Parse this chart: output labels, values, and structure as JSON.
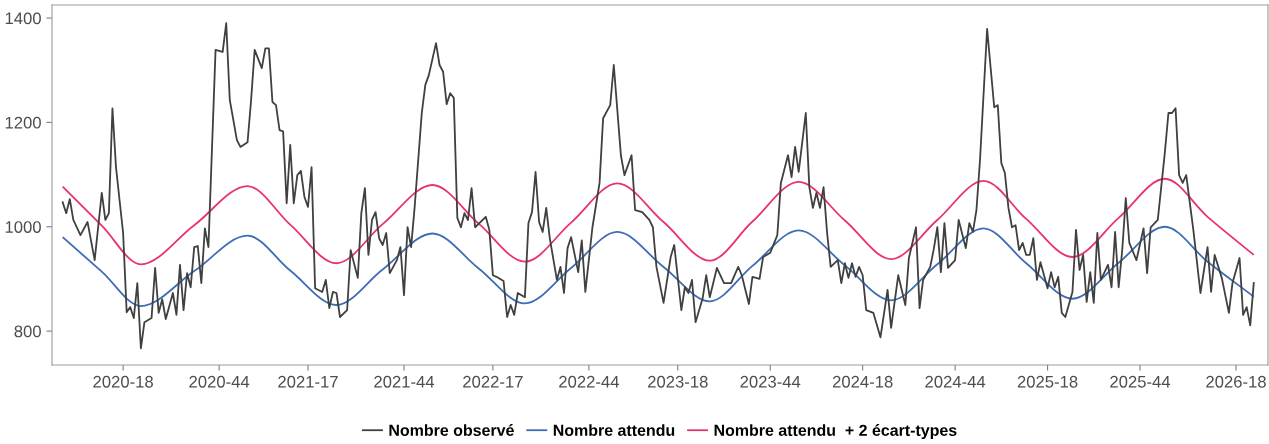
{
  "chart_data": {
    "type": "line",
    "ylim": [
      735,
      1425
    ],
    "yticks": [
      800,
      1000,
      1200,
      1400
    ],
    "grid": false,
    "legend": "bottom",
    "marker": "none",
    "line_style": "solid",
    "categories": [
      null,
      null,
      null,
      null,
      null,
      null,
      null,
      null,
      null,
      null,
      null,
      null,
      null,
      null,
      null,
      null,
      null,
      "2020-18",
      null,
      null,
      null,
      null,
      null,
      null,
      null,
      null,
      null,
      null,
      null,
      null,
      null,
      null,
      null,
      null,
      null,
      null,
      null,
      null,
      null,
      null,
      null,
      null,
      null,
      null,
      "2020-44",
      null,
      null,
      null,
      null,
      null,
      null,
      null,
      null,
      null,
      null,
      null,
      null,
      null,
      null,
      null,
      null,
      null,
      null,
      null,
      null,
      null,
      null,
      null,
      null,
      "2021-17",
      null,
      null,
      null,
      null,
      null,
      null,
      null,
      null,
      null,
      null,
      null,
      null,
      null,
      null,
      null,
      null,
      null,
      null,
      null,
      null,
      null,
      null,
      null,
      null,
      null,
      null,
      "2021-44",
      null,
      null,
      null,
      null,
      null,
      null,
      null,
      null,
      null,
      null,
      null,
      null,
      null,
      null,
      null,
      null,
      null,
      null,
      null,
      null,
      null,
      null,
      null,
      null,
      "2022-17",
      null,
      null,
      null,
      null,
      null,
      null,
      null,
      null,
      null,
      null,
      null,
      null,
      null,
      null,
      null,
      null,
      null,
      null,
      null,
      null,
      null,
      null,
      null,
      null,
      null,
      null,
      "2022-44",
      null,
      null,
      null,
      null,
      null,
      null,
      null,
      null,
      null,
      null,
      null,
      null,
      null,
      null,
      null,
      null,
      null,
      null,
      null,
      null,
      null,
      null,
      null,
      null,
      "2023-18",
      null,
      null,
      null,
      null,
      null,
      null,
      null,
      null,
      null,
      null,
      null,
      null,
      null,
      null,
      null,
      null,
      null,
      null,
      null,
      null,
      null,
      null,
      null,
      null,
      null,
      "2023-44",
      null,
      null,
      null,
      null,
      null,
      null,
      null,
      null,
      null,
      null,
      null,
      null,
      null,
      null,
      null,
      null,
      null,
      null,
      null,
      null,
      null,
      null,
      null,
      null,
      null,
      "2024-18",
      null,
      null,
      null,
      null,
      null,
      null,
      null,
      null,
      null,
      null,
      null,
      null,
      null,
      null,
      null,
      null,
      null,
      null,
      null,
      null,
      null,
      null,
      null,
      null,
      null,
      "2024-44",
      null,
      null,
      null,
      null,
      null,
      null,
      null,
      null,
      null,
      null,
      null,
      null,
      null,
      null,
      null,
      null,
      null,
      null,
      null,
      null,
      null,
      null,
      null,
      null,
      null,
      "2025-18",
      null,
      null,
      null,
      null,
      null,
      null,
      null,
      null,
      null,
      null,
      null,
      null,
      null,
      null,
      null,
      null,
      null,
      null,
      null,
      null,
      null,
      null,
      null,
      null,
      null,
      "2025-44",
      null,
      null,
      null,
      null,
      null,
      null,
      null,
      null,
      null,
      null,
      null,
      null,
      null,
      null,
      null,
      null,
      null,
      null,
      null,
      null,
      null,
      null,
      null,
      null,
      null,
      null,
      "2026-18",
      null,
      null,
      null,
      null,
      null
    ],
    "series": [
      {
        "name": "Nombre observé",
        "color": "#404040",
        "values": [
          1047,
          1026,
          1053,
          1013,
          null,
          984,
          null,
          1009,
          null,
          936,
          null,
          1065,
          1013,
          1026,
          1227,
          1114,
          null,
          988,
          836,
          846,
          825,
          892,
          767,
          817,
          null,
          825,
          921,
          835,
          861,
          823,
          null,
          873,
          831,
          927,
          840,
          911,
          884,
          961,
          963,
          892,
          997,
          961,
          null,
          1339,
          null,
          1335,
          1390,
          1243,
          null,
          1166,
          1153,
          null,
          1162,
          1243,
          1339,
          null,
          1304,
          1342,
          1342,
          1239,
          1233,
          1185,
          1183,
          1045,
          1157,
          1045,
          1099,
          1107,
          1057,
          1038,
          1114,
          882,
          null,
          875,
          898,
          844,
          875,
          873,
          827,
          null,
          840,
          955,
          null,
          902,
          1026,
          1074,
          946,
          1013,
          1028,
          978,
          965,
          988,
          911,
          null,
          936,
          961,
          869,
          999,
          961,
          1038,
          null,
          1218,
          1272,
          1291,
          null,
          1352,
          1310,
          1297,
          1235,
          1256,
          1247,
          1017,
          999,
          1026,
          1013,
          1074,
          999,
          null,
          null,
          1019,
          994,
          907,
          904,
          null,
          896,
          827,
          850,
          831,
          873,
          null,
          865,
          1007,
          1028,
          1105,
          1009,
          990,
          1036,
          978,
          null,
          898,
          923,
          873,
          959,
          980,
          null,
          913,
          974,
          875,
          null,
          999,
          null,
          1084,
          1208,
          null,
          1233,
          1310,
          null,
          1137,
          1099,
          null,
          1137,
          1032,
          null,
          1028,
          null,
          1013,
          999,
          923,
          null,
          854,
          null,
          942,
          965,
          null,
          840,
          884,
          873,
          898,
          817,
          null,
          863,
          907,
          865,
          null,
          921,
          null,
          892,
          null,
          892,
          null,
          923,
          907,
          null,
          852,
          904,
          null,
          900,
          942,
          null,
          950,
          null,
          984,
          1084,
          null,
          1137,
          1095,
          1153,
          1105,
          null,
          1218,
          1076,
          1036,
          1065,
          1036,
          1076,
          988,
          923,
          null,
          936,
          892,
          930,
          902,
          930,
          904,
          923,
          907,
          840,
          null,
          835,
          null,
          788,
          null,
          879,
          806,
          null,
          907,
          null,
          850,
          940,
          null,
          999,
          844,
          898,
          null,
          923,
          957,
          999,
          913,
          1007,
          921,
          null,
          936,
          1013,
          null,
          959,
          1007,
          990,
          1032,
          1128,
          null,
          1379,
          null,
          1229,
          1233,
          1122,
          1103,
          1036,
          999,
          1003,
          955,
          969,
          946,
          946,
          978,
          898,
          932,
          null,
          882,
          913,
          884,
          904,
          835,
          827,
          null,
          875,
          994,
          917,
          946,
          856,
          913,
          854,
          988,
          898,
          null,
          927,
          884,
          990,
          884,
          955,
          1055,
          969,
          null,
          936,
          null,
          997,
          911,
          999,
          null,
          1013,
          null,
          1143,
          1218,
          1218,
          1227,
          1099,
          1084,
          1099,
          null,
          994,
          null,
          873,
          null,
          961,
          875,
          946,
          null,
          902,
          null,
          835,
          892,
          null,
          940,
          831,
          846,
          811,
          892
        ]
      },
      {
        "name": "Nombre attendu",
        "color": "#3d6db4",
        "values": [
          980,
          null,
          null,
          null,
          null,
          null,
          null,
          null,
          null,
          null,
          null,
          914,
          null,
          null,
          null,
          null,
          null,
          null,
          null,
          null,
          null,
          null,
          848,
          null,
          null,
          null,
          null,
          null,
          null,
          null,
          null,
          null,
          null,
          null,
          null,
          null,
          null,
          915,
          null,
          null,
          null,
          null,
          null,
          null,
          null,
          null,
          null,
          null,
          null,
          null,
          null,
          null,
          983,
          null,
          null,
          null,
          null,
          null,
          null,
          null,
          null,
          null,
          null,
          null,
          916,
          null,
          null,
          null,
          null,
          null,
          null,
          null,
          null,
          null,
          null,
          null,
          null,
          850,
          null,
          null,
          null,
          null,
          null,
          null,
          null,
          null,
          null,
          null,
          null,
          null,
          918,
          null,
          null,
          null,
          null,
          null,
          null,
          null,
          null,
          null,
          null,
          null,
          null,
          null,
          987,
          null,
          null,
          null,
          null,
          null,
          null,
          null,
          null,
          null,
          null,
          null,
          null,
          920,
          null,
          null,
          null,
          null,
          null,
          null,
          null,
          null,
          null,
          null,
          null,
          null,
          853,
          null,
          null,
          null,
          null,
          null,
          null,
          null,
          null,
          null,
          null,
          null,
          null,
          921,
          null,
          null,
          null,
          null,
          null,
          null,
          null,
          null,
          null,
          null,
          null,
          null,
          990,
          null,
          null,
          null,
          null,
          null,
          null,
          null,
          null,
          null,
          null,
          null,
          null,
          923,
          null,
          null,
          null,
          null,
          null,
          null,
          null,
          null,
          null,
          null,
          null,
          null,
          857,
          null,
          null,
          null,
          null,
          null,
          null,
          null,
          null,
          null,
          null,
          null,
          925,
          null,
          null,
          null,
          null,
          null,
          null,
          null,
          null,
          null,
          null,
          null,
          null,
          993,
          null,
          null,
          null,
          null,
          null,
          null,
          null,
          null,
          null,
          null,
          null,
          null,
          926,
          null,
          null,
          null,
          null,
          null,
          null,
          null,
          null,
          null,
          null,
          null,
          null,
          859,
          null,
          null,
          null,
          null,
          null,
          null,
          null,
          null,
          null,
          null,
          null,
          null,
          928,
          null,
          null,
          null,
          null,
          null,
          null,
          null,
          null,
          null,
          null,
          null,
          null,
          997,
          null,
          null,
          null,
          null,
          null,
          null,
          null,
          null,
          null,
          null,
          null,
          930,
          null,
          null,
          null,
          null,
          null,
          null,
          null,
          null,
          null,
          null,
          null,
          null,
          862,
          null,
          null,
          null,
          null,
          null,
          null,
          null,
          null,
          null,
          null,
          null,
          null,
          931,
          null,
          null,
          null,
          null,
          null,
          null,
          null,
          null,
          null,
          null,
          null,
          null,
          1000,
          null,
          null,
          null,
          null,
          null,
          null,
          null,
          null,
          null,
          null,
          null,
          933,
          null,
          null,
          null,
          null,
          null,
          null,
          null,
          null,
          null,
          null,
          null,
          null,
          866
        ]
      },
      {
        "name": "Nombre attendu  + 2 écart-types",
        "color": "#e8336f",
        "values": [
          1077,
          null,
          null,
          null,
          null,
          null,
          null,
          null,
          null,
          null,
          null,
          1002,
          null,
          null,
          null,
          null,
          null,
          null,
          null,
          null,
          null,
          null,
          928,
          null,
          null,
          null,
          null,
          null,
          null,
          null,
          null,
          null,
          null,
          null,
          null,
          null,
          null,
          1003,
          null,
          null,
          null,
          null,
          null,
          null,
          null,
          null,
          null,
          null,
          null,
          null,
          null,
          null,
          1078,
          null,
          null,
          null,
          null,
          null,
          null,
          null,
          null,
          null,
          null,
          null,
          1004,
          null,
          null,
          null,
          null,
          null,
          null,
          null,
          null,
          null,
          null,
          null,
          null,
          930,
          null,
          null,
          null,
          null,
          null,
          null,
          null,
          null,
          null,
          null,
          null,
          null,
          1005,
          null,
          null,
          null,
          null,
          null,
          null,
          null,
          null,
          null,
          null,
          null,
          null,
          null,
          1080,
          null,
          null,
          null,
          null,
          null,
          null,
          null,
          null,
          null,
          null,
          null,
          null,
          1006,
          null,
          null,
          null,
          null,
          null,
          null,
          null,
          null,
          null,
          null,
          null,
          null,
          933,
          null,
          null,
          null,
          null,
          null,
          null,
          null,
          null,
          null,
          null,
          null,
          null,
          1008,
          null,
          null,
          null,
          null,
          null,
          null,
          null,
          null,
          null,
          null,
          null,
          null,
          1083,
          null,
          null,
          null,
          null,
          null,
          null,
          null,
          null,
          null,
          null,
          null,
          null,
          1009,
          null,
          null,
          null,
          null,
          null,
          null,
          null,
          null,
          null,
          null,
          null,
          null,
          935,
          null,
          null,
          null,
          null,
          null,
          null,
          null,
          null,
          null,
          null,
          null,
          1010,
          null,
          null,
          null,
          null,
          null,
          null,
          null,
          null,
          null,
          null,
          null,
          null,
          1086,
          null,
          null,
          null,
          null,
          null,
          null,
          null,
          null,
          null,
          null,
          null,
          null,
          1012,
          null,
          null,
          null,
          null,
          null,
          null,
          null,
          null,
          null,
          null,
          null,
          null,
          938,
          null,
          null,
          null,
          null,
          null,
          null,
          null,
          null,
          null,
          null,
          null,
          null,
          1013,
          null,
          null,
          null,
          null,
          null,
          null,
          null,
          null,
          null,
          null,
          null,
          null,
          1088,
          null,
          null,
          null,
          null,
          null,
          null,
          null,
          null,
          null,
          null,
          null,
          1015,
          null,
          null,
          null,
          null,
          null,
          null,
          null,
          null,
          null,
          null,
          null,
          null,
          942,
          null,
          null,
          null,
          null,
          null,
          null,
          null,
          null,
          null,
          null,
          null,
          null,
          1017,
          null,
          null,
          null,
          null,
          null,
          null,
          null,
          null,
          null,
          null,
          null,
          null,
          1092,
          null,
          null,
          null,
          null,
          null,
          null,
          null,
          null,
          null,
          null,
          null,
          1019,
          null,
          null,
          null,
          null,
          null,
          null,
          null,
          null,
          null,
          null,
          null,
          null,
          946
        ]
      }
    ]
  }
}
